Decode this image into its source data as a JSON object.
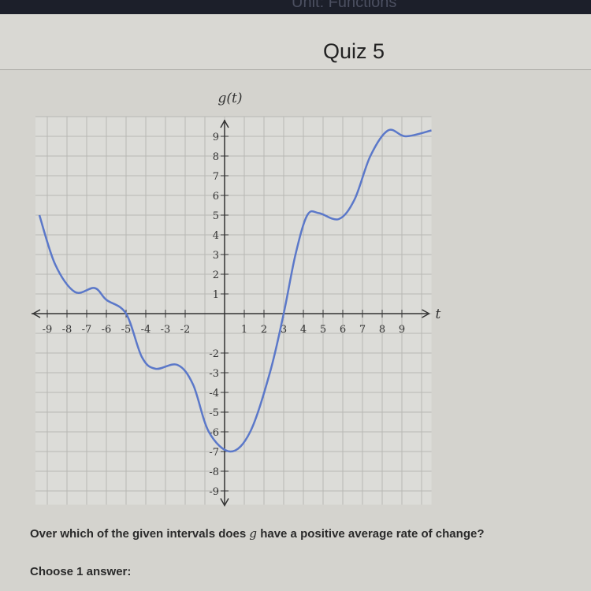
{
  "header": {
    "top_text": "Unit: Functions",
    "title": "Quiz 5"
  },
  "question": {
    "before": "Over which of the given intervals does ",
    "var": "g",
    "after": " have a positive average rate of change?"
  },
  "choose_label": "Choose 1 answer:",
  "chart_data": {
    "type": "line",
    "ylabel": "g(t)",
    "xlabel": "t",
    "xlim": [
      -9.6,
      10.5
    ],
    "ylim": [
      -9.7,
      10
    ],
    "grid": true,
    "line_color": "#5b78c9",
    "x_ticks": [
      -9,
      -8,
      -7,
      -6,
      -5,
      -4,
      -3,
      -2,
      1,
      2,
      3,
      4,
      5,
      6,
      7,
      8,
      9
    ],
    "y_ticks": [
      9,
      8,
      7,
      6,
      5,
      4,
      3,
      2,
      1,
      -2,
      -3,
      -4,
      -5,
      -6,
      -7,
      -8,
      -9
    ],
    "series": [
      {
        "points": [
          [
            -9.4,
            5
          ],
          [
            -8.6,
            2.5
          ],
          [
            -7.6,
            1.1
          ],
          [
            -6.6,
            1.3
          ],
          [
            -6,
            0.7
          ],
          [
            -5,
            0
          ],
          [
            -4.2,
            -2.2
          ],
          [
            -3.5,
            -2.8
          ],
          [
            -2.4,
            -2.6
          ],
          [
            -1.6,
            -3.6
          ],
          [
            -0.8,
            -6
          ],
          [
            0.3,
            -7
          ],
          [
            1.3,
            -6
          ],
          [
            2.3,
            -3
          ],
          [
            3,
            0
          ],
          [
            3.6,
            3
          ],
          [
            4.2,
            5
          ],
          [
            4.8,
            5.1
          ],
          [
            5.8,
            4.8
          ],
          [
            6.6,
            5.8
          ],
          [
            7.4,
            8
          ],
          [
            8.3,
            9.3
          ],
          [
            9.2,
            9
          ],
          [
            10.5,
            9.3
          ]
        ]
      }
    ]
  }
}
